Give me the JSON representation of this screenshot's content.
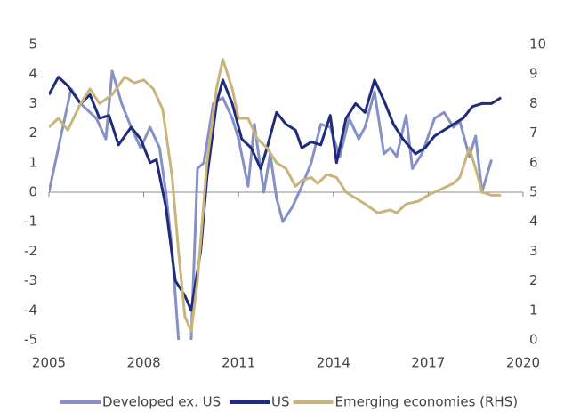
{
  "chart_data": {
    "type": "line",
    "series": [
      {
        "name": "Developed ex. US",
        "color": "#8591c6",
        "x": [
          2005,
          2005.7,
          2006,
          2006.5,
          2006.8,
          2007,
          2007.3,
          2007.6,
          2007.9,
          2008.2,
          2008.5,
          2008.7,
          2008.9,
          2009.1,
          2009.3,
          2009.5,
          2009.7,
          2009.9,
          2010.2,
          2010.5,
          2010.8,
          2011,
          2011.3,
          2011.5,
          2011.8,
          2012,
          2012.2,
          2012.4,
          2012.7,
          2013,
          2013.3,
          2013.6,
          2013.9,
          2014.2,
          2014.5,
          2014.8,
          2015,
          2015.3,
          2015.6,
          2015.8,
          2016,
          2016.3,
          2016.5,
          2016.8,
          2017.2,
          2017.5,
          2017.8,
          2018,
          2018.3,
          2018.5,
          2018.7,
          2019
        ],
        "values": [
          0,
          3.5,
          3,
          2.5,
          1.8,
          4.1,
          3,
          2.2,
          1.5,
          2.2,
          1.5,
          0,
          -2,
          -5,
          -6,
          -5,
          0.8,
          1,
          3,
          3.2,
          2.5,
          1.8,
          0.2,
          2.3,
          0,
          1.3,
          -0.2,
          -1,
          -0.5,
          0.2,
          1,
          2.3,
          2.2,
          1.2,
          2.5,
          1.8,
          2.2,
          3.4,
          1.3,
          1.5,
          1.2,
          2.6,
          0.8,
          1.3,
          2.5,
          2.7,
          2.2,
          2.4,
          1.2,
          1.9,
          0,
          1.1
        ]
      },
      {
        "name": "US",
        "color": "#1f2b7b",
        "x": [
          2005,
          2005.3,
          2005.6,
          2006,
          2006.3,
          2006.6,
          2006.9,
          2007.2,
          2007.6,
          2007.9,
          2008.2,
          2008.4,
          2008.7,
          2009,
          2009.3,
          2009.5,
          2009.8,
          2010,
          2010.3,
          2010.5,
          2010.8,
          2011.1,
          2011.4,
          2011.7,
          2011.9,
          2012.2,
          2012.5,
          2012.8,
          2013,
          2013.3,
          2013.6,
          2013.9,
          2014.1,
          2014.4,
          2014.7,
          2015,
          2015.3,
          2015.6,
          2015.9,
          2016.2,
          2016.6,
          2016.9,
          2017.2,
          2017.5,
          2017.8,
          2018.1,
          2018.4,
          2018.7,
          2019,
          2019.3
        ],
        "values": [
          3.3,
          3.9,
          3.6,
          3,
          3.3,
          2.5,
          2.6,
          1.6,
          2.2,
          1.8,
          1,
          1.1,
          -0.5,
          -3,
          -3.5,
          -4,
          -2,
          0.5,
          3,
          3.8,
          3,
          1.8,
          1.5,
          0.8,
          1.5,
          2.7,
          2.3,
          2.1,
          1.5,
          1.7,
          1.6,
          2.6,
          1,
          2.5,
          3,
          2.7,
          3.8,
          3.1,
          2.3,
          1.8,
          1.3,
          1.5,
          1.9,
          2.1,
          2.3,
          2.5,
          2.9,
          3,
          3,
          3.2
        ]
      },
      {
        "name": "Emerging economies (RHS)",
        "color": "#c9b57c",
        "axis": "y2",
        "x": [
          2005,
          2005.3,
          2005.6,
          2006,
          2006.3,
          2006.6,
          2007,
          2007.4,
          2007.7,
          2008,
          2008.3,
          2008.6,
          2008.9,
          2009.1,
          2009.3,
          2009.5,
          2009.7,
          2010,
          2010.3,
          2010.5,
          2010.8,
          2011,
          2011.3,
          2011.6,
          2011.9,
          2012.2,
          2012.5,
          2012.8,
          2013,
          2013.3,
          2013.5,
          2013.8,
          2014.1,
          2014.4,
          2014.7,
          2015,
          2015.4,
          2015.8,
          2016,
          2016.3,
          2016.7,
          2017,
          2017.4,
          2017.8,
          2018,
          2018.3,
          2018.5,
          2018.7,
          2019,
          2019.3
        ],
        "values": [
          7.2,
          7.5,
          7.1,
          8,
          8.5,
          8,
          8.3,
          8.9,
          8.7,
          8.8,
          8.5,
          7.8,
          5.5,
          3,
          0.8,
          0.3,
          2,
          6,
          8.5,
          9.5,
          8.5,
          7.5,
          7.5,
          6.8,
          6.5,
          6,
          5.8,
          5.2,
          5.4,
          5.5,
          5.3,
          5.6,
          5.5,
          5,
          4.8,
          4.6,
          4.3,
          4.4,
          4.3,
          4.6,
          4.7,
          4.9,
          5.1,
          5.3,
          5.5,
          6.5,
          5.8,
          5,
          4.9,
          4.9
        ]
      }
    ],
    "xlim": [
      2005,
      2020
    ],
    "xticks": [
      2005,
      2008,
      2011,
      2014,
      2017,
      2020
    ],
    "ylim": [
      -5,
      5
    ],
    "yticks": [
      -5,
      -4,
      -3,
      -2,
      -1,
      0,
      1,
      2,
      3,
      4,
      5
    ],
    "y2lim": [
      0,
      10
    ],
    "y2ticks": [
      0,
      1,
      2,
      3,
      4,
      5,
      6,
      7,
      8,
      9,
      10
    ],
    "legend": "bottom"
  }
}
